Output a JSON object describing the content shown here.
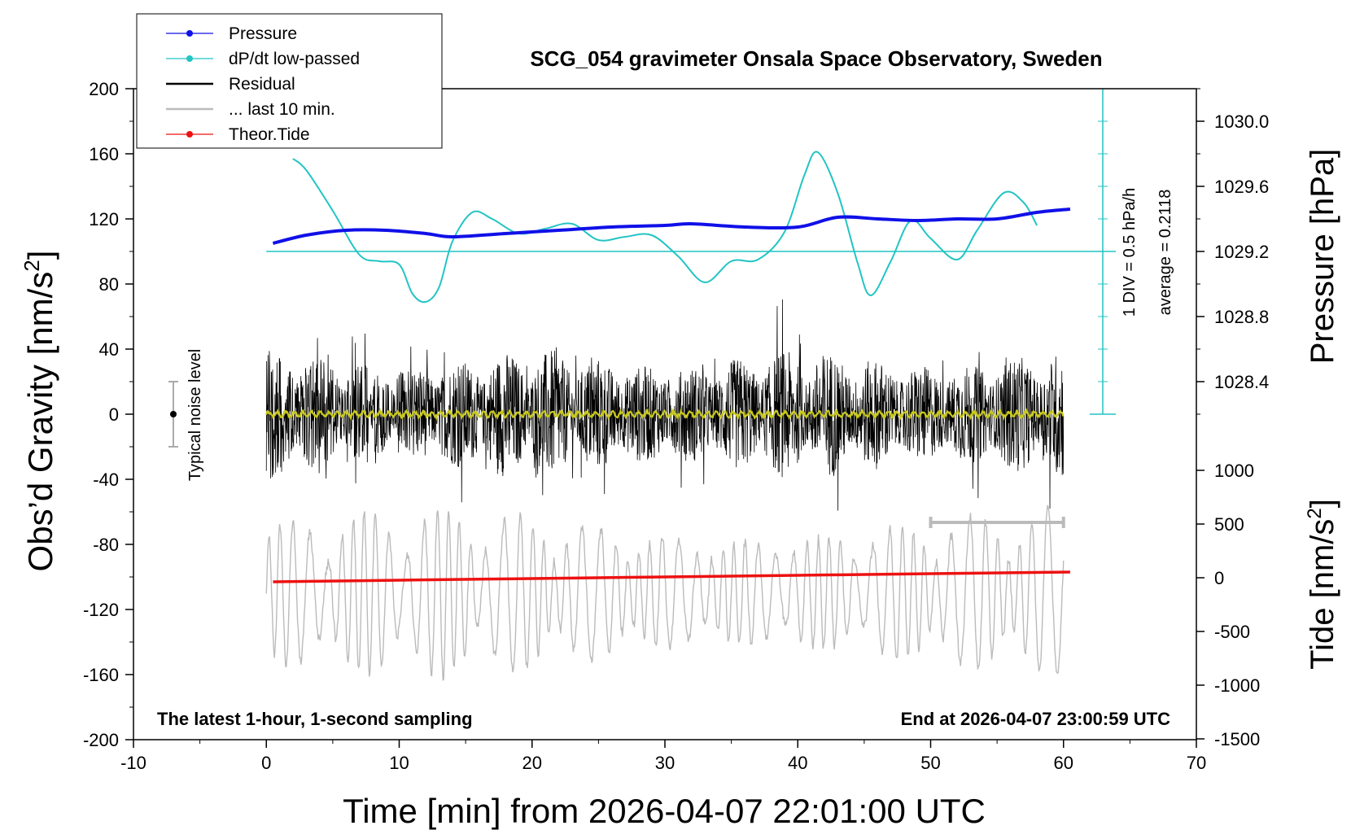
{
  "title": "SCG_054 gravimeter Onsala Space Observatory, Sweden",
  "xlabel": "Time [min] from 2026-04-07 22:01:00 UTC",
  "ylabel_left": "Obs’d Gravity [nm/s²]",
  "ylabel_right_top": "Pressure [hPa]",
  "ylabel_right_bottom": "Tide [nm/s²]",
  "note_left": "The latest 1-hour, 1-second sampling",
  "note_right": "End at 2026-04-07 23:00:59 UTC",
  "noise_label": "Typical noise level",
  "dpdt_scale_label": "1 DIV = 0.5 hPa/h",
  "dpdt_average_label": "average = 0.2118",
  "legend": [
    {
      "label": "Pressure",
      "color": "#1010e8",
      "marker": true
    },
    {
      "label": "dP/dt low-passed",
      "color": "#22c4c4",
      "marker": true
    },
    {
      "label": "Residual",
      "color": "#000000",
      "marker": false
    },
    {
      "label": "... last 10 min.",
      "color": "#bbbbbb",
      "marker": false
    },
    {
      "label": "Theor.Tide",
      "color": "#ee1111",
      "marker": true
    }
  ],
  "chart_data": {
    "type": "line",
    "xlim": [
      -10,
      70
    ],
    "ylim": [
      -200,
      200
    ],
    "grid": false,
    "legend_placement": "top-left",
    "x_ticks": [
      -10,
      0,
      10,
      20,
      30,
      40,
      50,
      60,
      70
    ],
    "y_ticks": [
      200,
      160,
      120,
      80,
      40,
      0,
      -40,
      -80,
      -120,
      -160,
      -200
    ],
    "pressure_axis": {
      "ticks": [
        1030.0,
        1029.6,
        1029.2,
        1028.8,
        1028.4
      ],
      "tick_labels": [
        "1030.0",
        "1029.6",
        "1029.2",
        "1028.8",
        "1028.4"
      ]
    },
    "tide_axis": {
      "ticks": [
        1000,
        500,
        0,
        -500,
        -1000,
        -1500
      ],
      "tick_labels": [
        "1000",
        "500",
        "0",
        "-500",
        "-1000",
        "-1500"
      ]
    },
    "noise_level": {
      "x": -7,
      "center": 0,
      "half_range": 20
    },
    "last_10_min_bar": {
      "x_start": 50,
      "x_end": 60
    },
    "dpdt_zero_line_y": 100,
    "series": [
      {
        "name": "Pressure",
        "color": "#1010e8",
        "x": [
          0.5,
          3,
          6,
          9,
          12,
          14,
          18,
          22,
          26,
          30,
          32,
          36,
          40,
          43,
          46,
          49,
          52,
          55,
          58,
          60.5
        ],
        "y": [
          105,
          110,
          113,
          113,
          111,
          109,
          111,
          113,
          115,
          116,
          117,
          115,
          115,
          121,
          120,
          119,
          120,
          120,
          124,
          126
        ]
      },
      {
        "name": "dP/dt low-passed",
        "color": "#22c4c4",
        "x": [
          2,
          3,
          5,
          7,
          8.5,
          10,
          11,
          12,
          13,
          14,
          15.5,
          17,
          19,
          21,
          23,
          25,
          27,
          29,
          31,
          33,
          35,
          37,
          39,
          40.5,
          41.5,
          43,
          44.5,
          45.5,
          47,
          48.5,
          50,
          52,
          53.5,
          55.5,
          57,
          58
        ],
        "y": [
          157,
          150,
          125,
          98,
          94,
          92,
          74,
          69,
          78,
          106,
          124,
          120,
          111,
          114,
          117,
          107,
          109,
          110,
          97,
          81,
          94,
          95,
          112,
          147,
          161,
          136,
          93,
          73,
          94,
          119,
          108,
          95,
          113,
          136,
          130,
          116
        ]
      },
      {
        "name": "Residual",
        "color": "#000000",
        "amplitude": 40,
        "samples": 3600
      },
      {
        "name": "... last 10 min.",
        "color": "#bbbbbb",
        "amplitude": 40
      },
      {
        "name": "Theor.Tide",
        "color": "#ee1111",
        "x": [
          0.5,
          10,
          20,
          30,
          40,
          50,
          60.5
        ],
        "y": [
          -103,
          -102,
          -101,
          -100,
          -99,
          -98,
          -97
        ]
      }
    ]
  }
}
